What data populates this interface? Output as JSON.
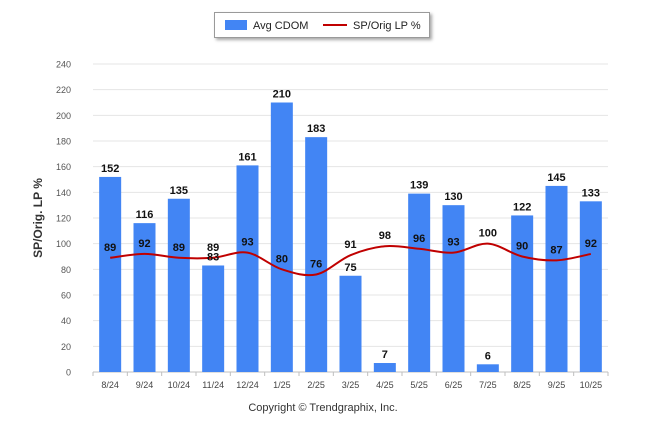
{
  "chart_data": {
    "type": "bar",
    "categories": [
      "8/24",
      "9/24",
      "10/24",
      "11/24",
      "12/24",
      "1/25",
      "2/25",
      "3/25",
      "4/25",
      "5/25",
      "6/25",
      "7/25",
      "8/25",
      "9/25",
      "10/25"
    ],
    "series": [
      {
        "name": "Avg CDOM",
        "kind": "bar",
        "color": "#4285f4",
        "values": [
          152,
          116,
          135,
          83,
          161,
          210,
          183,
          75,
          7,
          139,
          130,
          6,
          122,
          145,
          133
        ]
      },
      {
        "name": "SP/Orig LP %",
        "kind": "line",
        "color": "#c00000",
        "values": [
          89,
          92,
          89,
          89,
          93,
          80,
          76,
          91,
          98,
          96,
          93,
          100,
          90,
          87,
          92
        ]
      }
    ],
    "ylabel": "SP/Orig. LP %",
    "xlabel": "",
    "ylim": [
      0,
      240
    ],
    "yticks": [
      0,
      20,
      40,
      60,
      80,
      100,
      120,
      140,
      160,
      180,
      200,
      220,
      240
    ],
    "grid": true,
    "legend_position": "top-center"
  },
  "footer": {
    "copyright": "Copyright © Trendgraphix, Inc."
  }
}
